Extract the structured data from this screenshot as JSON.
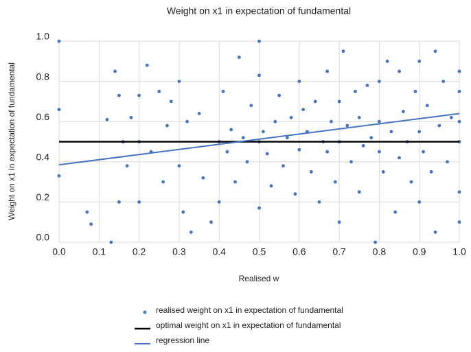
{
  "chart_data": {
    "type": "scatter",
    "title": "Weight on x1 in expectation of fundamental",
    "x_label": "Realised w",
    "y_label": "Weight on x1 in expectation of fundamental",
    "xlim": [
      0,
      1
    ],
    "ylim": [
      0,
      1
    ],
    "xticks": [
      {
        "value": 0,
        "label": "0.0"
      },
      0.1,
      0.2,
      0.3,
      0.4,
      0.5,
      0.6,
      0.7,
      0.8,
      0.9,
      {
        "value": 1,
        "label": "1.0"
      }
    ],
    "yticks": [
      {
        "value": 0,
        "label": "0.0"
      },
      0.2,
      0.4,
      0.6,
      0.8,
      {
        "value": 1,
        "label": "1.0"
      }
    ],
    "grid": true,
    "legend": "bottom",
    "series": [
      {
        "name": "realised weight on x1 in expectation of fundamental",
        "color": "#4472c4",
        "mode": "markers",
        "x": [
          0,
          0,
          0,
          0.07,
          0.08,
          0.12,
          0.13,
          0.14,
          0.15,
          0.15,
          0.16,
          0.17,
          0.18,
          0.2,
          0.2,
          0.2,
          0.22,
          0.23,
          0.25,
          0.26,
          0.27,
          0.28,
          0.3,
          0.3,
          0.31,
          0.32,
          0.33,
          0.35,
          0.36,
          0.38,
          0.4,
          0.4,
          0.41,
          0.42,
          0.43,
          0.44,
          0.45,
          0.46,
          0.47,
          0.48,
          0.5,
          0.5,
          0.5,
          0.5,
          0.51,
          0.52,
          0.53,
          0.54,
          0.55,
          0.56,
          0.57,
          0.58,
          0.59,
          0.6,
          0.6,
          0.61,
          0.62,
          0.63,
          0.64,
          0.65,
          0.66,
          0.67,
          0.67,
          0.68,
          0.69,
          0.7,
          0.7,
          0.7,
          0.71,
          0.72,
          0.73,
          0.74,
          0.75,
          0.75,
          0.76,
          0.77,
          0.78,
          0.79,
          0.8,
          0.8,
          0.8,
          0.81,
          0.82,
          0.83,
          0.84,
          0.85,
          0.85,
          0.86,
          0.87,
          0.88,
          0.89,
          0.9,
          0.9,
          0.9,
          0.91,
          0.92,
          0.93,
          0.94,
          0.94,
          0.95,
          0.96,
          0.97,
          0.98,
          1,
          1,
          1,
          1,
          1,
          1
        ],
        "y": [
          0.66,
          0.33,
          1,
          0.15,
          0.09,
          0.61,
          0,
          0.85,
          0.73,
          0.2,
          0.5,
          0.38,
          0.62,
          0.5,
          0.2,
          0.73,
          0.88,
          0.45,
          0.75,
          0.3,
          0.58,
          0.7,
          0.8,
          0.38,
          0.15,
          0.6,
          0.05,
          0.64,
          0.32,
          0.1,
          0.5,
          0.2,
          0.75,
          0.45,
          0.56,
          0.3,
          0.92,
          0.52,
          0.4,
          0.68,
          0.5,
          0.83,
          0.17,
          1,
          0.55,
          0.44,
          0.28,
          0.6,
          0.73,
          0.38,
          0.52,
          0.62,
          0.24,
          0.8,
          0.46,
          0.66,
          0.55,
          0.35,
          0.7,
          0.2,
          0.5,
          0.85,
          0.45,
          0.6,
          0.3,
          0.7,
          0.5,
          0.1,
          0.95,
          0.58,
          0.4,
          0.75,
          0.62,
          0.25,
          0.48,
          0.78,
          0.52,
          0,
          0.8,
          0.45,
          0.6,
          0.35,
          0.9,
          0.55,
          0.15,
          0.85,
          0.42,
          0.65,
          0.5,
          0.3,
          0.75,
          0.9,
          0.55,
          0.2,
          0.45,
          0.68,
          0.35,
          0.05,
          0.95,
          0.58,
          0.8,
          0.4,
          0.62,
          0.75,
          0.5,
          0.25,
          0.85,
          0.1,
          0.6
        ]
      },
      {
        "name": "optimal weight on x1 in expectation of fundamental",
        "color": "#000000",
        "mode": "line",
        "x": [
          0,
          1
        ],
        "y": [
          0.5,
          0.5
        ]
      },
      {
        "name": "regression line",
        "color": "#4472c4",
        "mode": "line",
        "x": [
          0,
          1
        ],
        "y": [
          0.385,
          0.64
        ]
      }
    ]
  }
}
